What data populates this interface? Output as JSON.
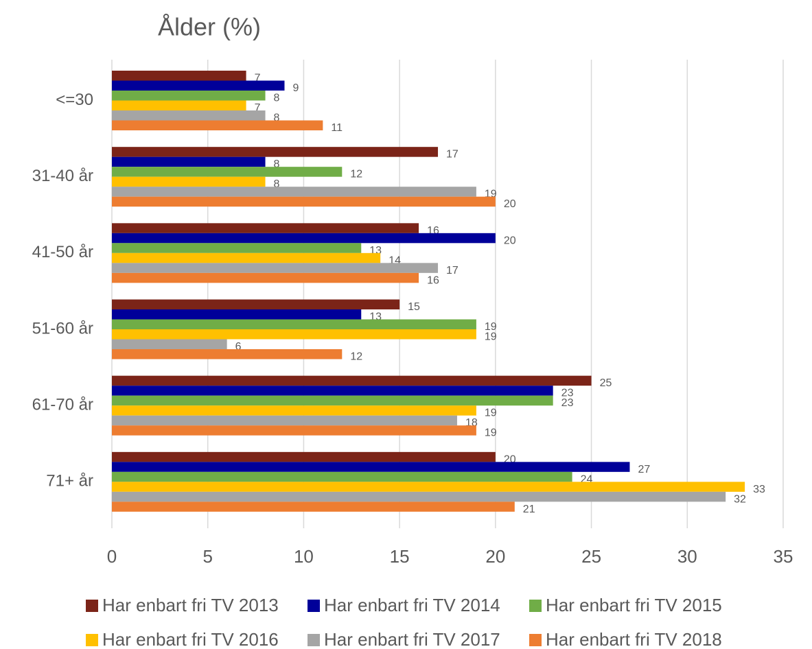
{
  "chart_data": {
    "type": "bar",
    "orientation": "horizontal",
    "title": "Ålder (%)",
    "categories": [
      "<=30",
      "31-40 år",
      "41-50 år",
      "51-60 år",
      "61-70 år",
      "71+ år"
    ],
    "series": [
      {
        "name": "Har enbart fri TV 2013",
        "color": "#7b2418",
        "values": [
          7,
          17,
          16,
          15,
          25,
          20
        ]
      },
      {
        "name": "Har enbart fri TV 2014",
        "color": "#000099",
        "values": [
          9,
          8,
          20,
          13,
          23,
          27
        ]
      },
      {
        "name": "Har enbart fri TV 2015",
        "color": "#70ad47",
        "values": [
          8,
          12,
          13,
          19,
          23,
          24
        ]
      },
      {
        "name": "Har enbart fri TV 2016",
        "color": "#ffc000",
        "values": [
          7,
          8,
          14,
          19,
          19,
          33
        ]
      },
      {
        "name": "Har enbart fri TV 2017",
        "color": "#a5a5a5",
        "values": [
          8,
          19,
          17,
          6,
          18,
          32
        ]
      },
      {
        "name": "Har enbart fri TV 2018",
        "color": "#ed7d31",
        "values": [
          11,
          20,
          16,
          12,
          19,
          21
        ]
      }
    ],
    "xlim": [
      0,
      35
    ],
    "xticks": [
      0,
      5,
      10,
      15,
      20,
      25,
      30,
      35
    ],
    "grid": true,
    "legend": "bottom"
  }
}
